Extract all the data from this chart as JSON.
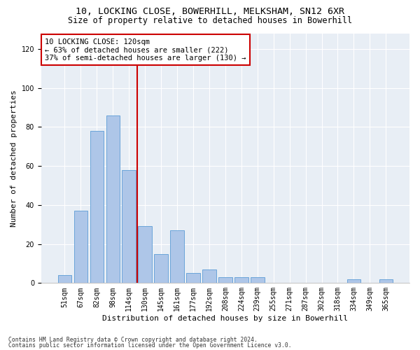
{
  "title1": "10, LOCKING CLOSE, BOWERHILL, MELKSHAM, SN12 6XR",
  "title2": "Size of property relative to detached houses in Bowerhill",
  "xlabel": "Distribution of detached houses by size in Bowerhill",
  "ylabel": "Number of detached properties",
  "bin_labels": [
    "51sqm",
    "67sqm",
    "82sqm",
    "98sqm",
    "114sqm",
    "130sqm",
    "145sqm",
    "161sqm",
    "177sqm",
    "192sqm",
    "208sqm",
    "224sqm",
    "239sqm",
    "255sqm",
    "271sqm",
    "287sqm",
    "302sqm",
    "318sqm",
    "334sqm",
    "349sqm",
    "365sqm"
  ],
  "bar_values": [
    4,
    37,
    78,
    86,
    58,
    29,
    15,
    27,
    5,
    7,
    3,
    3,
    3,
    0,
    0,
    0,
    0,
    0,
    2,
    0,
    2
  ],
  "bar_color": "#aec6e8",
  "bar_edge_color": "#5b9bd5",
  "annotation_text_line1": "10 LOCKING CLOSE: 120sqm",
  "annotation_text_line2": "← 63% of detached houses are smaller (222)",
  "annotation_text_line3": "37% of semi-detached houses are larger (130) →",
  "annotation_box_color": "#ffffff",
  "annotation_box_edge_color": "#cc0000",
  "vline_color": "#cc0000",
  "background_color": "#e8eef5",
  "ylim": [
    0,
    128
  ],
  "yticks": [
    0,
    20,
    40,
    60,
    80,
    100,
    120
  ],
  "footer1": "Contains HM Land Registry data © Crown copyright and database right 2024.",
  "footer2": "Contains public sector information licensed under the Open Government Licence v3.0.",
  "title1_fontsize": 9.5,
  "title2_fontsize": 8.5,
  "xlabel_fontsize": 8,
  "ylabel_fontsize": 8,
  "tick_fontsize": 7,
  "annotation_fontsize": 7.5,
  "footer_fontsize": 5.8
}
